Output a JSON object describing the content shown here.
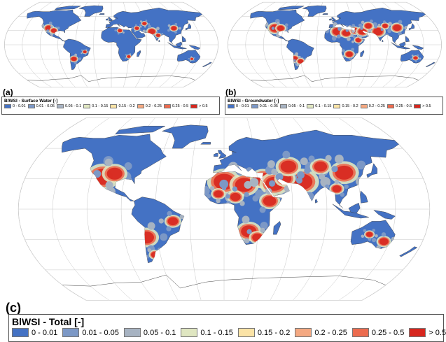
{
  "colors": {
    "ocean": "#ffffff",
    "graticule": "#c8c8c8",
    "outline": "#333333",
    "bins": [
      "#4472c4",
      "#7c98c6",
      "#a7b3c2",
      "#dfe6c1",
      "#fbe3a6",
      "#f4a881",
      "#ec6b4f",
      "#d7261e"
    ]
  },
  "panels": [
    {
      "label": "(a)",
      "legend_title": "BlWSI - Surface Water [-]",
      "classes": [
        "0 - 0.01",
        "0.01 - 0.05",
        "0.05 - 0.1",
        "0.1 - 0.15",
        "0.15 - 0.2",
        "0.2 - 0.25",
        "0.25 - 0.5",
        "> 0.5"
      ],
      "dominant": "low"
    },
    {
      "label": "(b)",
      "legend_title": "BlWSI - Groundwater [-]",
      "classes": [
        "0 - 0.01",
        "0.01 - 0.05",
        "0.05 - 0.1",
        "0.1 - 0.15",
        "0.15 - 0.2",
        "0.2 - 0.25",
        "0.25 - 0.5",
        "> 0.5"
      ],
      "dominant": "medium"
    },
    {
      "label": "(c)",
      "legend_title": "BlWSI - Total [-]",
      "classes": [
        "0 - 0.01",
        "0.01 - 0.05",
        "0.05 - 0.1",
        "0.1 - 0.15",
        "0.15 - 0.2",
        "0.2 - 0.25",
        "0.25 - 0.5",
        "> 0.5"
      ],
      "dominant": "high"
    }
  ]
}
